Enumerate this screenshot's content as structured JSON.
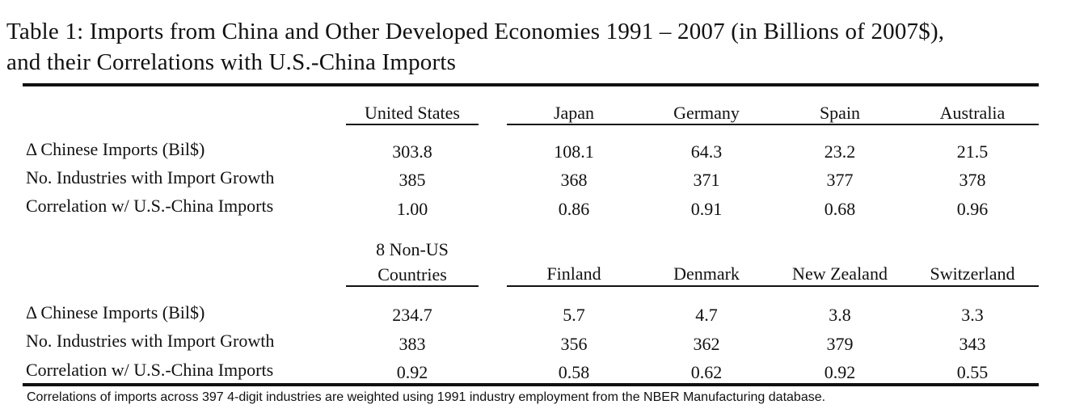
{
  "caption": {
    "line1": "Table 1:  Imports from China and Other Developed Economies 1991 – 2007 (in Billions of 2007$),",
    "line2": "and their Correlations with U.S.-China Imports"
  },
  "panel1": {
    "headers": [
      "United States",
      "Japan",
      "Germany",
      "Spain",
      "Australia"
    ],
    "rows": [
      {
        "label": "Δ Chinese Imports (Bil$)",
        "values": [
          "303.8",
          "108.1",
          "64.3",
          "23.2",
          "21.5"
        ]
      },
      {
        "label": "No. Industries with Import Growth",
        "values": [
          "385",
          "368",
          "371",
          "377",
          "378"
        ]
      },
      {
        "label": "Correlation w/ U.S.-China Imports",
        "values": [
          "1.00",
          "0.86",
          "0.91",
          "0.68",
          "0.96"
        ]
      }
    ]
  },
  "panel2": {
    "headers": [
      "8 Non-US Countries",
      "Finland",
      "Denmark",
      "New Zealand",
      "Switzerland"
    ],
    "header_first_line1": "8 Non-US",
    "header_first_line2": "Countries",
    "rows": [
      {
        "label": "Δ Chinese Imports (Bil$)",
        "values": [
          "234.7",
          "5.7",
          "4.7",
          "3.8",
          "3.3"
        ]
      },
      {
        "label": "No. Industries with Import Growth",
        "values": [
          "383",
          "356",
          "362",
          "379",
          "343"
        ]
      },
      {
        "label": "Correlation w/ U.S.-China Imports",
        "values": [
          "0.92",
          "0.58",
          "0.62",
          "0.92",
          "0.55"
        ]
      }
    ]
  },
  "note": "Correlations of imports across 397 4-digit industries are weighted using 1991 industry employment from the NBER Manufacturing database."
}
